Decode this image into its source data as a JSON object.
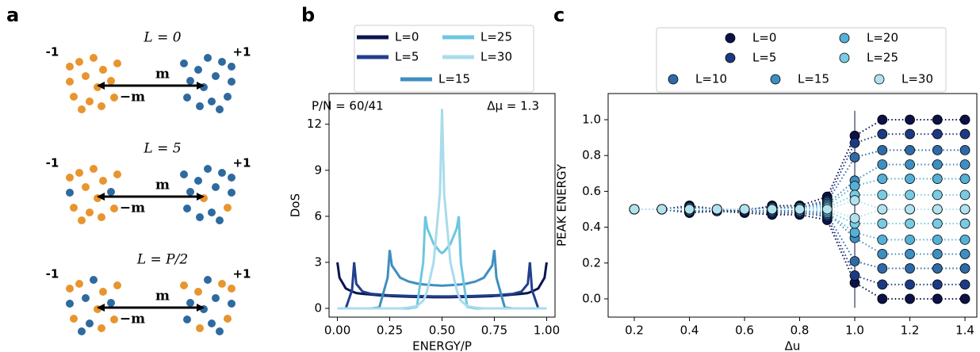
{
  "panel_a": {
    "label": "a",
    "diagrams": [
      {
        "title": "L = 0",
        "left": "-1",
        "right": "+1",
        "top": "m",
        "bottom": "−m"
      },
      {
        "title": "L = 5",
        "left": "-1",
        "right": "+1",
        "top": "m",
        "bottom": "−m"
      },
      {
        "title": "L = P/2",
        "left": "-1",
        "right": "+1",
        "top": "m",
        "bottom": "−m"
      }
    ]
  },
  "chart_data": [
    {
      "panel_label": "b",
      "type": "line",
      "x": [
        0,
        0.01,
        0.04,
        0.07,
        0.08,
        0.09,
        0.12,
        0.16,
        0.2,
        0.24,
        0.25,
        0.26,
        0.3,
        0.34,
        0.38,
        0.41,
        0.42,
        0.43,
        0.46,
        0.49,
        0.5,
        0.51,
        0.54,
        0.57,
        0.58,
        0.59,
        0.62,
        0.66,
        0.7,
        0.74,
        0.75,
        0.76,
        0.8,
        0.84,
        0.88,
        0.91,
        0.92,
        0.93,
        0.96,
        0.99,
        1.0
      ],
      "series": [
        {
          "name": "L=0",
          "color": "#0c1450",
          "values": [
            3.0,
            2.0,
            1.3,
            1.1,
            1.05,
            1.0,
            0.95,
            0.9,
            0.85,
            0.82,
            0.81,
            0.8,
            0.78,
            0.76,
            0.75,
            0.74,
            0.74,
            0.74,
            0.73,
            0.73,
            0.73,
            0.73,
            0.73,
            0.74,
            0.74,
            0.74,
            0.75,
            0.76,
            0.78,
            0.8,
            0.81,
            0.82,
            0.85,
            0.9,
            0.95,
            1.0,
            1.05,
            1.1,
            1.3,
            2.0,
            3.0
          ]
        },
        {
          "name": "L=5",
          "color": "#213f8c",
          "values": [
            0,
            0,
            0,
            1.2,
            3.0,
            1.6,
            1.1,
            0.95,
            0.9,
            0.86,
            0.85,
            0.85,
            0.83,
            0.81,
            0.8,
            0.79,
            0.79,
            0.79,
            0.78,
            0.78,
            0.78,
            0.78,
            0.78,
            0.79,
            0.79,
            0.79,
            0.8,
            0.81,
            0.83,
            0.85,
            0.85,
            0.86,
            0.9,
            0.95,
            1.1,
            1.6,
            3.0,
            1.2,
            0,
            0,
            0
          ]
        },
        {
          "name": "L=15",
          "color": "#3f8fc0",
          "values": [
            0,
            0,
            0,
            0,
            0,
            0,
            0,
            0,
            0.05,
            2.0,
            3.8,
            2.8,
            2.0,
            1.75,
            1.62,
            1.56,
            1.55,
            1.54,
            1.51,
            1.49,
            1.48,
            1.49,
            1.51,
            1.54,
            1.55,
            1.56,
            1.62,
            1.75,
            2.0,
            2.8,
            3.8,
            2.0,
            0.05,
            0,
            0,
            0,
            0,
            0,
            0,
            0,
            0
          ]
        },
        {
          "name": "L=25",
          "color": "#6ec6e0",
          "values": [
            0,
            0,
            0,
            0,
            0,
            0,
            0,
            0,
            0,
            0,
            0,
            0,
            0,
            0,
            0.1,
            3.0,
            6.0,
            5.2,
            4.2,
            3.7,
            3.6,
            3.7,
            4.2,
            5.2,
            6.0,
            3.0,
            0.1,
            0,
            0,
            0,
            0,
            0,
            0,
            0,
            0,
            0,
            0,
            0,
            0,
            0,
            0
          ]
        },
        {
          "name": "L=30",
          "color": "#a8dcec",
          "values": [
            0,
            0,
            0,
            0,
            0,
            0,
            0,
            0,
            0,
            0,
            0,
            0,
            0,
            0.05,
            0.15,
            0.5,
            0.8,
            1.2,
            3.0,
            7.5,
            13.0,
            7.5,
            3.0,
            1.2,
            0.8,
            0.5,
            0.15,
            0.05,
            0,
            0,
            0,
            0,
            0,
            0,
            0,
            0,
            0,
            0,
            0,
            0,
            0
          ]
        }
      ],
      "xlim": [
        -0.04,
        1.04
      ],
      "ylim": [
        -0.57,
        14.0
      ],
      "xticks": [
        {
          "value": 0,
          "label": "0.00"
        },
        {
          "value": 0.25,
          "label": "0.25"
        },
        {
          "value": 0.5,
          "label": "0.50"
        },
        {
          "value": 0.75,
          "label": "0.75"
        },
        {
          "value": 1,
          "label": "1.00"
        }
      ],
      "yticks": [
        0,
        3,
        6,
        9,
        12
      ],
      "x_label": "ENERGY/P",
      "y_label": "DoS",
      "annotations": [
        "P/N = 60/41",
        "Δμ = 1.3"
      ]
    },
    {
      "panel_label": "c",
      "type": "scatter",
      "x": [
        0.2,
        0.3,
        0.4,
        0.5,
        0.6,
        0.7,
        0.8,
        0.9,
        1.0,
        1.1,
        1.2,
        1.3,
        1.4
      ],
      "series": [
        {
          "name": "L=0",
          "color": "#0a1248",
          "upper": [
            0.5,
            0.5,
            0.52,
            0.5,
            0.49,
            0.52,
            0.52,
            0.57,
            0.91,
            1.0,
            1.0,
            1.0,
            1.0
          ],
          "lower": [
            0.5,
            0.5,
            0.48,
            0.49,
            0.48,
            0.47,
            0.47,
            0.44,
            0.09,
            0,
            0,
            0,
            0
          ]
        },
        {
          "name": "L=5",
          "color": "#1c3a84",
          "upper": [
            0.5,
            0.5,
            0.51,
            0.5,
            0.5,
            0.51,
            0.51,
            0.55,
            0.87,
            0.92,
            0.92,
            0.92,
            0.92
          ],
          "lower": [
            0.5,
            0.5,
            0.49,
            0.49,
            0.49,
            0.48,
            0.48,
            0.46,
            0.13,
            0.08,
            0.08,
            0.08,
            0.08
          ]
        },
        {
          "name": "L=10",
          "color": "#2e6aa8",
          "upper": [
            0.5,
            0.5,
            0.51,
            0.5,
            0.5,
            0.51,
            0.51,
            0.54,
            0.79,
            0.83,
            0.83,
            0.83,
            0.83
          ],
          "lower": [
            0.5,
            0.5,
            0.49,
            0.5,
            0.5,
            0.49,
            0.49,
            0.47,
            0.21,
            0.17,
            0.17,
            0.17,
            0.17
          ]
        },
        {
          "name": "L=15",
          "color": "#3d8fc2",
          "upper": [
            0.5,
            0.5,
            0.5,
            0.5,
            0.5,
            0.5,
            0.51,
            0.53,
            0.66,
            0.75,
            0.75,
            0.75,
            0.75
          ],
          "lower": [
            0.5,
            0.5,
            0.5,
            0.5,
            0.5,
            0.5,
            0.49,
            0.48,
            0.34,
            0.25,
            0.25,
            0.25,
            0.25
          ]
        },
        {
          "name": "L=20",
          "color": "#55b0d8",
          "upper": [
            0.5,
            0.5,
            0.5,
            0.5,
            0.5,
            0.5,
            0.5,
            0.52,
            0.63,
            0.67,
            0.67,
            0.67,
            0.67
          ],
          "lower": [
            0.5,
            0.5,
            0.5,
            0.5,
            0.5,
            0.5,
            0.5,
            0.48,
            0.37,
            0.33,
            0.33,
            0.33,
            0.33
          ]
        },
        {
          "name": "L=25",
          "color": "#78cbe3",
          "upper": [
            0.5,
            0.5,
            0.5,
            0.5,
            0.5,
            0.5,
            0.5,
            0.51,
            0.58,
            0.58,
            0.58,
            0.58,
            0.58
          ],
          "lower": [
            0.5,
            0.5,
            0.5,
            0.5,
            0.5,
            0.5,
            0.5,
            0.49,
            0.42,
            0.42,
            0.42,
            0.42,
            0.42
          ]
        },
        {
          "name": "L=30",
          "color": "#b0e2ee",
          "upper": [
            0.5,
            0.5,
            0.5,
            0.5,
            0.5,
            0.5,
            0.5,
            0.5,
            0.55,
            0.5,
            0.5,
            0.5,
            0.5
          ],
          "lower": [
            0.5,
            0.5,
            0.5,
            0.5,
            0.5,
            0.5,
            0.5,
            0.5,
            0.45,
            0.5,
            0.5,
            0.5,
            0.5
          ]
        }
      ],
      "vline": 1.0,
      "xlim": [
        0.105,
        1.443
      ],
      "ylim": [
        -0.102,
        1.146
      ],
      "xticks": [
        0.2,
        0.4,
        0.6,
        0.8,
        {
          "value": 1,
          "label": "1.0"
        },
        1.2,
        1.4
      ],
      "yticks": [
        {
          "value": 0,
          "label": "0.0"
        },
        0.2,
        0.4,
        0.6,
        0.8,
        {
          "value": 1,
          "label": "1.0"
        }
      ],
      "x_label": "Δu",
      "y_label": "PEAK ENERGY"
    }
  ]
}
